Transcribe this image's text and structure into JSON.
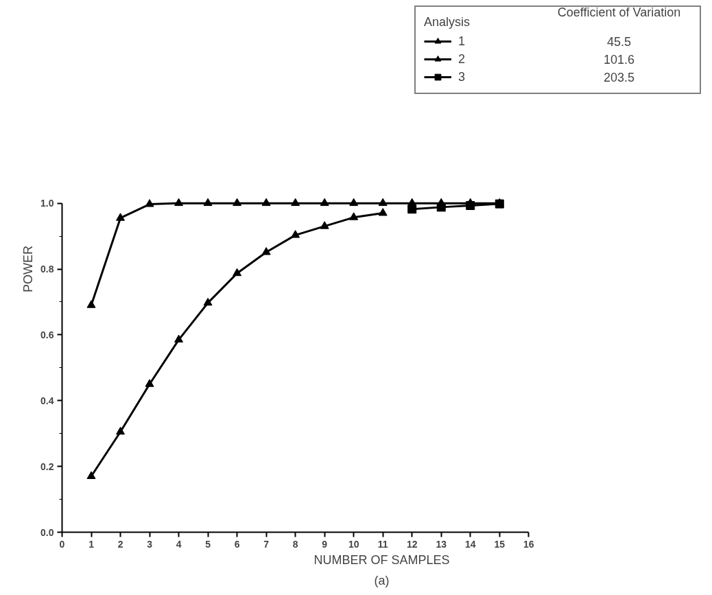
{
  "chart_data": {
    "type": "line",
    "xlabel": "NUMBER OF SAMPLES",
    "ylabel": "POWER",
    "legend_title": "Analysis",
    "x": [
      1,
      2,
      3,
      4,
      5,
      6,
      7,
      8,
      9,
      10,
      11,
      12,
      13,
      14,
      15
    ],
    "series": [
      {
        "name": "1",
        "color": "#000000",
        "marker": "triangle",
        "values": [
          0.69,
          0.955,
          0.997,
          1.0,
          1.0,
          1.0,
          1.0,
          1.0,
          1.0,
          1.0,
          1.0,
          1.0,
          1.0,
          1.0,
          1.0
        ]
      },
      {
        "name": "2",
        "color": "#000000",
        "marker": "triangle",
        "values": [
          0.17,
          0.305,
          0.45,
          0.585,
          0.697,
          0.787,
          0.851,
          0.903,
          0.93,
          0.957,
          0.97,
          null,
          null,
          null,
          null
        ]
      },
      {
        "name": "3",
        "color": "#000000",
        "marker": "square",
        "values": [
          null,
          null,
          null,
          null,
          null,
          null,
          null,
          null,
          null,
          null,
          null,
          0.982,
          0.988,
          0.993,
          0.998
        ]
      }
    ],
    "xlim": [
      0,
      16
    ],
    "xticks": [
      0,
      1,
      2,
      3,
      4,
      5,
      6,
      7,
      8,
      9,
      10,
      11,
      12,
      13,
      14,
      15,
      16
    ],
    "ylim": [
      0,
      1
    ],
    "yticks": [
      {
        "value": 0,
        "label": "0.0"
      },
      {
        "value": 0.2,
        "label": "0.2"
      },
      {
        "value": 0.4,
        "label": "0.4"
      },
      {
        "value": 0.6,
        "label": "0.6"
      },
      {
        "value": 0.8,
        "label": "0.8"
      },
      {
        "value": 1,
        "label": "1.0"
      }
    ],
    "grid": false,
    "legend": "top right",
    "line_style": "solid",
    "annotations": [
      "Coefficient of Variation",
      "45.5",
      "101.6",
      "203.5",
      "(a)"
    ]
  }
}
